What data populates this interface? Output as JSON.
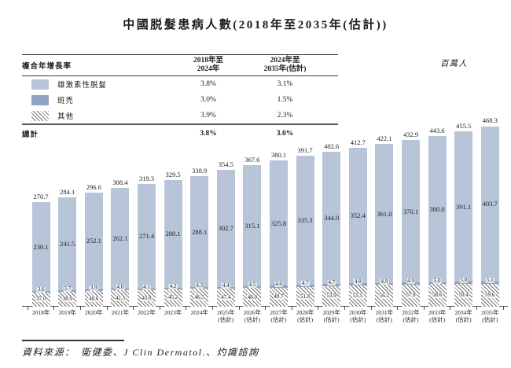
{
  "title": "中國脱髮患病人數(2018年至2035年(估計))",
  "unit_label": "百萬人",
  "cagr_table": {
    "title": "複合年增長率",
    "col1_line1": "2018年至",
    "col1_line2": "2024年",
    "col2_line1": "2024年至",
    "col2_line2": "2035年(估計)",
    "rows": [
      {
        "label": "雄激素性脱髮",
        "c1": "3.8%",
        "c2": "3.1%"
      },
      {
        "label": "斑禿",
        "c1": "3.0%",
        "c2": "1.5%"
      },
      {
        "label": "其他",
        "c1": "3.9%",
        "c2": "2.3%"
      }
    ],
    "total_row": {
      "label": "總計",
      "c1": "3.8%",
      "c2": "3.0%"
    }
  },
  "chart_data": {
    "type": "bar",
    "subtype": "stacked",
    "title": "中國脱髮患病人數(2018年至2035年(估計))",
    "ylabel": "百萬人",
    "ylim": [
      0,
      480
    ],
    "grid": false,
    "legend_position": "top-left-table",
    "categories": [
      "2018年",
      "2019年",
      "2020年",
      "2021年",
      "2022年",
      "2023年",
      "2024年",
      "2025年",
      "2026年",
      "2027年",
      "2028年",
      "2029年",
      "2030年",
      "2031年",
      "2032年",
      "2033年",
      "2034年",
      "2035年"
    ],
    "category_notes": [
      "",
      "",
      "",
      "",
      "",
      "",
      "",
      "(估計)",
      "(估計)",
      "(估計)",
      "(估計)",
      "(估計)",
      "(估計)",
      "(估計)",
      "(估計)",
      "(估計)",
      "(估計)",
      "(估計)"
    ],
    "series": [
      {
        "name": "雄激素性脱髮",
        "color": "#b8c5d8",
        "stack_position": "top",
        "values": [
          230.1,
          241.5,
          252.1,
          262.1,
          271.4,
          280.1,
          288.1,
          302.7,
          315.1,
          325.8,
          335.3,
          344.0,
          352.4,
          361.0,
          370.1,
          380.0,
          391.1,
          403.7
        ]
      },
      {
        "name": "斑禿",
        "color": "#8fa5c2",
        "stack_position": "middle",
        "values": [
          3.6,
          3.7,
          3.9,
          4.0,
          4.1,
          4.2,
          4.3,
          4.4,
          4.5,
          4.6,
          4.7,
          4.7,
          4.8,
          4.9,
          4.9,
          5.0,
          5.0,
          5.1
        ]
      },
      {
        "name": "其他",
        "pattern": "diagonal-hatch",
        "color": "#6b6b6b",
        "stack_position": "bottom",
        "values": [
          37.0,
          38.9,
          40.6,
          42.3,
          43.8,
          45.2,
          46.5,
          47.4,
          48.0,
          49.7,
          51.8,
          53.9,
          55.5,
          56.2,
          57.9,
          58.6,
          59.4,
          59.6
        ]
      }
    ],
    "totals": [
      270.7,
      284.1,
      296.6,
      308.4,
      319.3,
      329.5,
      338.9,
      354.5,
      367.6,
      380.1,
      391.7,
      402.6,
      412.7,
      422.1,
      432.9,
      443.6,
      455.5,
      468.3
    ]
  },
  "source": "資料來源：　衛健委、J Clin Dermatol.、灼識諮詢",
  "colors": {
    "androgenetic": "#b8c5d8",
    "areata": "#8fa5c2",
    "hatch_line": "#6b6b6b",
    "text": "#1c1c1c"
  }
}
